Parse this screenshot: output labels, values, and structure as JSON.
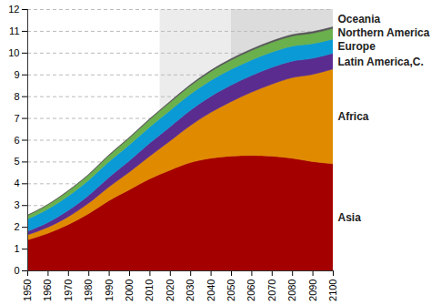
{
  "chart_data": {
    "type": "area",
    "stacked": true,
    "grid": true,
    "x": [
      1950,
      1960,
      1970,
      1980,
      1990,
      2000,
      2010,
      2020,
      2030,
      2040,
      2050,
      2060,
      2070,
      2080,
      2090,
      2100
    ],
    "xlim": [
      1950,
      2100
    ],
    "xticks": [
      1950,
      1960,
      1970,
      1980,
      1990,
      2000,
      2010,
      2020,
      2030,
      2040,
      2050,
      2060,
      2070,
      2080,
      2090,
      2100
    ],
    "ylim": [
      0,
      12
    ],
    "yticks": [
      0,
      1,
      2,
      3,
      4,
      5,
      6,
      7,
      8,
      9,
      10,
      11,
      12
    ],
    "shaded_ranges": [
      [
        2015,
        2050
      ],
      [
        2050,
        2100
      ]
    ],
    "series": [
      {
        "name": "Asia",
        "color": "#a50000",
        "values": [
          1.4,
          1.7,
          2.1,
          2.6,
          3.2,
          3.7,
          4.2,
          4.6,
          4.95,
          5.15,
          5.25,
          5.28,
          5.25,
          5.15,
          5.0,
          4.9
        ]
      },
      {
        "name": "Africa",
        "color": "#e08a00",
        "values": [
          0.23,
          0.28,
          0.36,
          0.48,
          0.63,
          0.81,
          1.04,
          1.34,
          1.7,
          2.1,
          2.5,
          2.9,
          3.3,
          3.7,
          4.0,
          4.35
        ]
      },
      {
        "name": "Latin America,C.",
        "color": "#5b2c8f",
        "values": [
          0.17,
          0.22,
          0.29,
          0.36,
          0.44,
          0.52,
          0.6,
          0.65,
          0.7,
          0.74,
          0.76,
          0.77,
          0.77,
          0.76,
          0.74,
          0.72
        ]
      },
      {
        "name": "Europe",
        "color": "#0a9ad6",
        "values": [
          0.55,
          0.61,
          0.66,
          0.69,
          0.72,
          0.73,
          0.74,
          0.75,
          0.74,
          0.73,
          0.72,
          0.71,
          0.7,
          0.69,
          0.67,
          0.65
        ]
      },
      {
        "name": "Northern America",
        "color": "#6ab04c",
        "values": [
          0.17,
          0.2,
          0.23,
          0.25,
          0.28,
          0.31,
          0.34,
          0.37,
          0.39,
          0.41,
          0.43,
          0.44,
          0.45,
          0.46,
          0.48,
          0.49
        ]
      },
      {
        "name": "Oceania",
        "color": "#555555",
        "values": [
          0.013,
          0.016,
          0.02,
          0.023,
          0.027,
          0.031,
          0.037,
          0.043,
          0.048,
          0.053,
          0.057,
          0.061,
          0.064,
          0.067,
          0.07,
          0.072
        ]
      }
    ]
  }
}
